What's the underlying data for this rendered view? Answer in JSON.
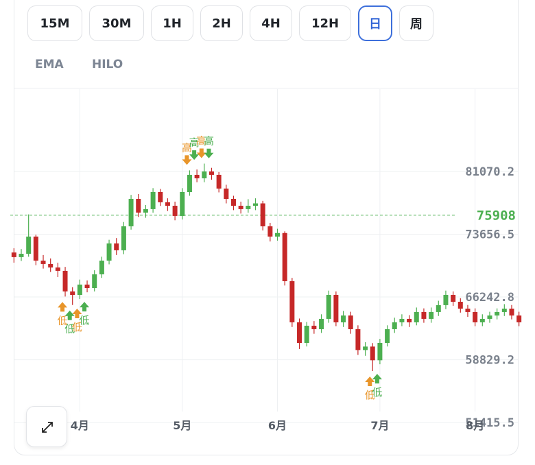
{
  "intervals": [
    "15M",
    "30M",
    "1H",
    "2H",
    "4H",
    "12H",
    "日",
    "周"
  ],
  "indicators": [
    "EMA",
    "HILO"
  ],
  "chart_data": {
    "type": "candlestick",
    "categories": [
      null,
      null,
      null,
      null,
      null,
      null,
      null,
      null,
      null,
      "4月",
      null,
      null,
      null,
      null,
      null,
      null,
      null,
      null,
      null,
      null,
      null,
      null,
      null,
      "5月",
      null,
      null,
      null,
      null,
      null,
      null,
      null,
      null,
      null,
      null,
      null,
      null,
      "6月",
      null,
      null,
      null,
      null,
      null,
      null,
      null,
      null,
      null,
      null,
      null,
      null,
      null,
      "7月",
      null,
      null,
      null,
      null,
      null,
      null,
      null,
      null,
      null,
      null,
      null,
      null,
      "8月",
      null,
      null,
      null,
      null,
      null,
      null
    ],
    "open": [
      71500,
      70950,
      71350,
      73380,
      70540,
      70140,
      69730,
      69330,
      66900,
      66490,
      67710,
      67300,
      68920,
      70540,
      72570,
      71760,
      74590,
      77830,
      76210,
      76620,
      78640,
      77430,
      77020,
      75810,
      78640,
      80670,
      80260,
      81070,
      80670,
      79050,
      77830,
      77020,
      76620,
      77020,
      77300,
      74590,
      73380,
      73800,
      68110,
      63250,
      60820,
      62850,
      62440,
      63660,
      66490,
      63250,
      64060,
      62440,
      59980,
      60390,
      58770,
      60820,
      62440,
      63250,
      63660,
      63250,
      64470,
      63660,
      64470,
      65280,
      66490,
      65680,
      64870,
      64470,
      63250,
      63660,
      64060,
      64470,
      64870,
      64060
    ],
    "high": [
      72000,
      71900,
      76000,
      73600,
      71200,
      70800,
      70300,
      69800,
      67400,
      68300,
      68200,
      69400,
      71000,
      73000,
      73200,
      75100,
      78300,
      78400,
      77100,
      79100,
      79000,
      77900,
      77500,
      79100,
      81200,
      81300,
      82000,
      81500,
      81000,
      79500,
      78200,
      77500,
      77800,
      77900,
      77600,
      75000,
      74300,
      74000,
      68500,
      63700,
      63300,
      63400,
      64200,
      67000,
      66900,
      64600,
      64500,
      62900,
      60900,
      60800,
      61300,
      62900,
      63800,
      64200,
      64100,
      65000,
      64900,
      65000,
      65800,
      67000,
      66900,
      66100,
      65300,
      64900,
      64200,
      64500,
      64900,
      65400,
      65300,
      64500
    ],
    "low": [
      70300,
      70500,
      71000,
      70000,
      69600,
      69200,
      68600,
      66300,
      65300,
      66000,
      66800,
      66900,
      68500,
      70100,
      71200,
      71300,
      74200,
      75700,
      75600,
      76200,
      77000,
      76400,
      75300,
      75400,
      78200,
      79800,
      79800,
      80100,
      78600,
      77300,
      76500,
      76100,
      76200,
      76500,
      74100,
      72800,
      72900,
      67600,
      62700,
      60100,
      60400,
      61900,
      62000,
      63200,
      62800,
      62700,
      61900,
      59400,
      59300,
      57500,
      58300,
      60400,
      62000,
      62800,
      62700,
      62900,
      63200,
      63200,
      64000,
      64800,
      65200,
      64400,
      63900,
      62800,
      62800,
      63200,
      63600,
      64000,
      63600,
      62800
    ],
    "close": [
      70950,
      71350,
      73380,
      70540,
      70140,
      69730,
      69330,
      66900,
      66490,
      67710,
      67300,
      68920,
      70540,
      72570,
      71760,
      74590,
      77830,
      76210,
      76620,
      78640,
      77430,
      77020,
      75810,
      78640,
      80670,
      80260,
      81070,
      80670,
      79050,
      77830,
      77020,
      76620,
      77020,
      77300,
      74590,
      73380,
      73800,
      68110,
      63250,
      60820,
      62850,
      62440,
      63660,
      66490,
      63250,
      64060,
      62440,
      59980,
      60390,
      58770,
      60820,
      62440,
      63250,
      63660,
      63250,
      64470,
      63660,
      64470,
      65280,
      66490,
      65680,
      64870,
      64470,
      63250,
      63660,
      64060,
      64470,
      64870,
      64060,
      63250
    ],
    "ylim": [
      49480,
      90790
    ],
    "yticks": [
      51415.5,
      58829.2,
      66242.8,
      73656.5,
      81070.2
    ],
    "last_price": 75908,
    "up_color": "#4caf50",
    "down_color": "#c62828",
    "high_label": "高",
    "low_label": "低",
    "grid": true
  }
}
